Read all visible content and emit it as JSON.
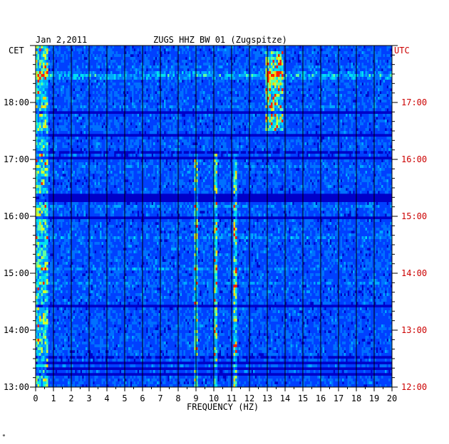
{
  "chart_data": {
    "type": "heatmap",
    "date_label": "Jan 2,2011",
    "station_label": "ZUGS HHZ BW 01 (Zugspitze)",
    "left_timezone": "CET",
    "right_timezone": "UTC",
    "xlabel": "FREQUENCY (HZ)",
    "xlim": [
      0,
      20
    ],
    "x_ticks": [
      "0",
      "1",
      "2",
      "3",
      "4",
      "5",
      "6",
      "7",
      "8",
      "9",
      "10",
      "11",
      "12",
      "13",
      "14",
      "15",
      "16",
      "17",
      "18",
      "19",
      "20"
    ],
    "y_hours_range": [
      13.0,
      19.0
    ],
    "left_y_ticks": [
      {
        "hour": 18,
        "label": "18:00"
      },
      {
        "hour": 17,
        "label": "17:00"
      },
      {
        "hour": 16,
        "label": "16:00"
      },
      {
        "hour": 15,
        "label": "15:00"
      },
      {
        "hour": 14,
        "label": "14:00"
      },
      {
        "hour": 13,
        "label": "13:00"
      }
    ],
    "right_y_ticks": [
      {
        "hour": 18,
        "label": "17:00"
      },
      {
        "hour": 17,
        "label": "16:00"
      },
      {
        "hour": 16,
        "label": "15:00"
      },
      {
        "hour": 15,
        "label": "14:00"
      },
      {
        "hour": 14,
        "label": "13:00"
      },
      {
        "hour": 13,
        "label": "12:00"
      }
    ],
    "footer_mark": "*",
    "colors": {
      "background": "#0000c8",
      "low": "#0033ff",
      "mid": "#00b4ff",
      "high": "#ffff00",
      "peak": "#ff0000",
      "right_axis_text": "#cc0000",
      "grid": "#000000"
    },
    "persistent_lines_hz": [
      9.0,
      10.1,
      11.2
    ],
    "burst_band": {
      "freq_hz": [
        12.9,
        13.9
      ],
      "hours": [
        17.5,
        18.9
      ]
    }
  }
}
